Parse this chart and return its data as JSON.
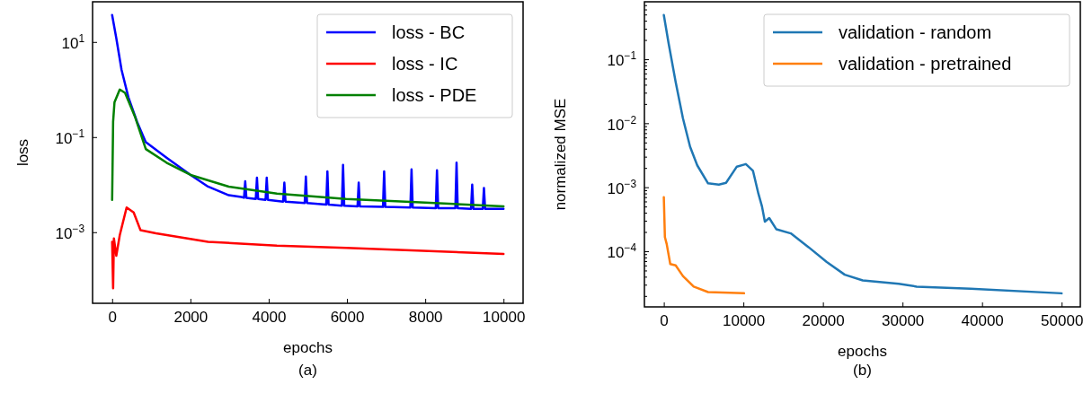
{
  "chart_data": [
    {
      "type": "line",
      "xlabel": "epochs",
      "ylabel": "loss",
      "log": "y",
      "grid": false,
      "legend": "top right",
      "annotations": [
        "(a)"
      ],
      "xlim": [
        -500,
        10500
      ],
      "xticks": [
        0,
        2000,
        4000,
        6000,
        8000,
        10000
      ],
      "ylim": [
        3.2e-05,
        70
      ],
      "yticks": [
        {
          "value": 10,
          "label": "10$^{1}$"
        },
        {
          "value": 0.1,
          "label": "10$^{−1}$"
        },
        {
          "value": 0.001,
          "label": "10$^{−3}$"
        }
      ],
      "series": [
        {
          "name": "loss - BC",
          "color": "#0000ff",
          "x": [
            0,
            106,
            240,
            415,
            636,
            857,
            1390,
            2005,
            2450,
            2980,
            3300,
            3370,
            3400,
            3430,
            3670,
            3700,
            3730,
            3920,
            3950,
            3980,
            4370,
            4400,
            4430,
            4920,
            4950,
            4980,
            5470,
            5500,
            5530,
            5870,
            5900,
            5930,
            6270,
            6300,
            6330,
            6920,
            6950,
            6980,
            7620,
            7650,
            7680,
            8270,
            8300,
            8330,
            8770,
            8800,
            8830,
            9170,
            9200,
            9230,
            9470,
            9500,
            9530,
            10000
          ],
          "values": [
            37,
            12,
            2.6,
            0.69,
            0.21,
            0.079,
            0.037,
            0.016,
            0.0091,
            0.006,
            0.0055,
            0.0053,
            0.0118,
            0.0053,
            0.005,
            0.014,
            0.005,
            0.0048,
            0.014,
            0.0048,
            0.0044,
            0.011,
            0.0044,
            0.0041,
            0.0148,
            0.0041,
            0.0038,
            0.019,
            0.0038,
            0.0036,
            0.026,
            0.0036,
            0.0035,
            0.011,
            0.0035,
            0.0034,
            0.019,
            0.0034,
            0.0033,
            0.021,
            0.0033,
            0.0032,
            0.02,
            0.0032,
            0.0032,
            0.029,
            0.0032,
            0.0031,
            0.01,
            0.0031,
            0.0031,
            0.0085,
            0.0031,
            0.0031
          ]
        },
        {
          "name": "loss - IC",
          "color": "#ff0000",
          "x": [
            0,
            25,
            45,
            106,
            195,
            370,
            550,
            725,
            1120,
            2450,
            4210,
            5980,
            10000
          ],
          "values": [
            0.00063,
            6.6e-05,
            0.00074,
            0.00032,
            0.00087,
            0.0033,
            0.0026,
            0.0011,
            0.00095,
            0.00063,
            0.00052,
            0.00047,
            0.00035
          ]
        },
        {
          "name": "loss - PDE",
          "color": "#008000",
          "x": [
            0,
            25,
            60,
            195,
            330,
            590,
            860,
            1390,
            2005,
            2980,
            4210,
            5980,
            7750,
            10000
          ],
          "values": [
            0.0048,
            0.21,
            0.54,
            1.0,
            0.85,
            0.26,
            0.056,
            0.029,
            0.016,
            0.0091,
            0.0065,
            0.005,
            0.0043,
            0.0035
          ]
        }
      ]
    },
    {
      "type": "line",
      "xlabel": "epochs",
      "ylabel": "normalized MSE",
      "log": "y",
      "grid": false,
      "legend": "top right",
      "annotations": [
        "(b)"
      ],
      "xlim": [
        -2440,
        52350
      ],
      "xticks": [
        0,
        10000,
        20000,
        30000,
        40000,
        50000
      ],
      "ylim": [
        1.35e-05,
        0.79
      ],
      "yticks": [
        {
          "value": 2e-05,
          "label": null
        },
        {
          "value": 3e-05,
          "label": null
        },
        {
          "value": 4e-05,
          "label": null
        },
        {
          "value": 5e-05,
          "label": null
        },
        {
          "value": 6e-05,
          "label": null
        },
        {
          "value": 7e-05,
          "label": null
        },
        {
          "value": 8e-05,
          "label": null
        },
        {
          "value": 9e-05,
          "label": null
        },
        {
          "value": 0.0001,
          "label": "10$^{−4}$"
        },
        {
          "value": 0.0002,
          "label": null
        },
        {
          "value": 0.0003,
          "label": null
        },
        {
          "value": 0.0004,
          "label": null
        },
        {
          "value": 0.0005,
          "label": null
        },
        {
          "value": 0.0006,
          "label": null
        },
        {
          "value": 0.0007,
          "label": null
        },
        {
          "value": 0.0008,
          "label": null
        },
        {
          "value": 0.0009,
          "label": null
        },
        {
          "value": 0.001,
          "label": "10$^{−3}$"
        },
        {
          "value": 0.002,
          "label": null
        },
        {
          "value": 0.003,
          "label": null
        },
        {
          "value": 0.004,
          "label": null
        },
        {
          "value": 0.005,
          "label": null
        },
        {
          "value": 0.006,
          "label": null
        },
        {
          "value": 0.007,
          "label": null
        },
        {
          "value": 0.008,
          "label": null
        },
        {
          "value": 0.009,
          "label": null
        },
        {
          "value": 0.01,
          "label": "10$^{−2}$"
        },
        {
          "value": 0.02,
          "label": null
        },
        {
          "value": 0.03,
          "label": null
        },
        {
          "value": 0.04,
          "label": null
        },
        {
          "value": 0.05,
          "label": null
        },
        {
          "value": 0.06,
          "label": null
        },
        {
          "value": 0.07,
          "label": null
        },
        {
          "value": 0.08,
          "label": null
        },
        {
          "value": 0.09,
          "label": null
        },
        {
          "value": 0.1,
          "label": "10$^{−1}$"
        },
        {
          "value": 0.2,
          "label": null
        },
        {
          "value": 0.3,
          "label": null
        },
        {
          "value": 0.4,
          "label": null
        },
        {
          "value": 0.5,
          "label": null
        },
        {
          "value": 0.6,
          "label": null
        },
        {
          "value": 0.7,
          "label": null
        }
      ],
      "series": [
        {
          "name": "validation - random",
          "color": "#1f77b4",
          "x": [
            0,
            590,
            1490,
            2400,
            3300,
            4200,
            5560,
            6920,
            7820,
            9180,
            10310,
            11210,
            11890,
            12340,
            12700,
            13250,
            14150,
            15960,
            18220,
            20480,
            22740,
            25000,
            29520,
            31780,
            38560,
            50000
          ],
          "values": [
            0.49,
            0.18,
            0.044,
            0.012,
            0.0043,
            0.0022,
            0.00115,
            0.0011,
            0.00117,
            0.0021,
            0.0023,
            0.0018,
            0.00079,
            0.0005,
            0.00029,
            0.00033,
            0.00022,
            0.00019,
            0.000115,
            6.8e-05,
            4.3e-05,
            3.5e-05,
            3.1e-05,
            2.8e-05,
            2.6e-05,
            2.2e-05
          ]
        },
        {
          "name": "validation - pretrained",
          "color": "#ff7f0e",
          "x": [
            0,
            135,
            360,
            810,
            1490,
            2400,
            3750,
            5560,
            10080
          ],
          "values": [
            0.0007,
            0.000166,
            0.00013,
            6.3e-05,
            6e-05,
            4.1e-05,
            2.8e-05,
            2.3e-05,
            2.2e-05
          ]
        }
      ]
    }
  ]
}
